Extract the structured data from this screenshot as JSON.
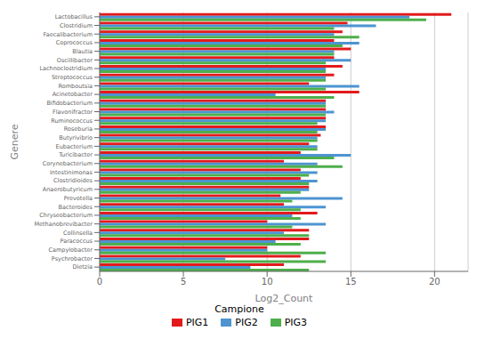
{
  "chart_data": {
    "type": "bar",
    "orientation": "horizontal",
    "xlabel": "Log2_Count",
    "ylabel": "Genere",
    "legend_title": "Campione",
    "legend": "bottom",
    "grid": true,
    "xlim": [
      0,
      22
    ],
    "xticks": [
      0,
      5,
      10,
      15,
      20
    ],
    "categories": [
      "Lactobacillus",
      "Clostridium",
      "Faecalibacterium",
      "Coprococcus",
      "Blautia",
      "Oscillibacter",
      "Lachnoclostridium",
      "Streptococcus",
      "Romboutsia",
      "Acinetobacter",
      "Bifidobacterium",
      "Flavonifractor",
      "Ruminococcus",
      "Roseburia",
      "Butyrivibrio",
      "Eubacterium",
      "Turicibacter",
      "Corynebacterium",
      "Intestinimonas",
      "Clostridioides",
      "Anaerobutyricum",
      "Prevotella",
      "Bacteroides",
      "Chryseobacterium",
      "Methanobrevibacter",
      "Collinsella",
      "Paracoccus",
      "Campylobacter",
      "Psychrobacter",
      "Dietzia"
    ],
    "series": [
      {
        "name": "PIG1",
        "color": "#e31a1c",
        "values": [
          21.0,
          14.8,
          14.5,
          14.0,
          15.0,
          14.0,
          14.5,
          14.0,
          12.5,
          15.5,
          13.5,
          13.5,
          13.5,
          13.5,
          13.2,
          12.5,
          12.0,
          11.0,
          12.0,
          12.0,
          12.5,
          10.8,
          11.0,
          13.0,
          10.0,
          12.5,
          12.5,
          10.0,
          12.0,
          11.0
        ]
      },
      {
        "name": "PIG2",
        "color": "#4d94d1",
        "values": [
          18.5,
          16.5,
          14.0,
          15.5,
          14.0,
          15.0,
          13.5,
          13.5,
          15.5,
          10.5,
          13.5,
          14.0,
          13.5,
          13.5,
          13.0,
          13.0,
          15.0,
          13.0,
          13.0,
          13.0,
          12.5,
          14.5,
          13.5,
          11.5,
          13.5,
          11.0,
          10.5,
          10.0,
          7.5,
          9.0
        ]
      },
      {
        "name": "PIG3",
        "color": "#4daf4a",
        "values": [
          19.5,
          14.0,
          15.5,
          14.5,
          14.0,
          13.5,
          13.5,
          13.5,
          13.5,
          14.0,
          13.5,
          13.5,
          13.0,
          13.0,
          13.0,
          13.0,
          14.0,
          14.5,
          12.5,
          12.5,
          12.0,
          11.5,
          12.0,
          12.0,
          11.5,
          12.5,
          12.0,
          13.5,
          13.5,
          12.5
        ]
      }
    ]
  }
}
